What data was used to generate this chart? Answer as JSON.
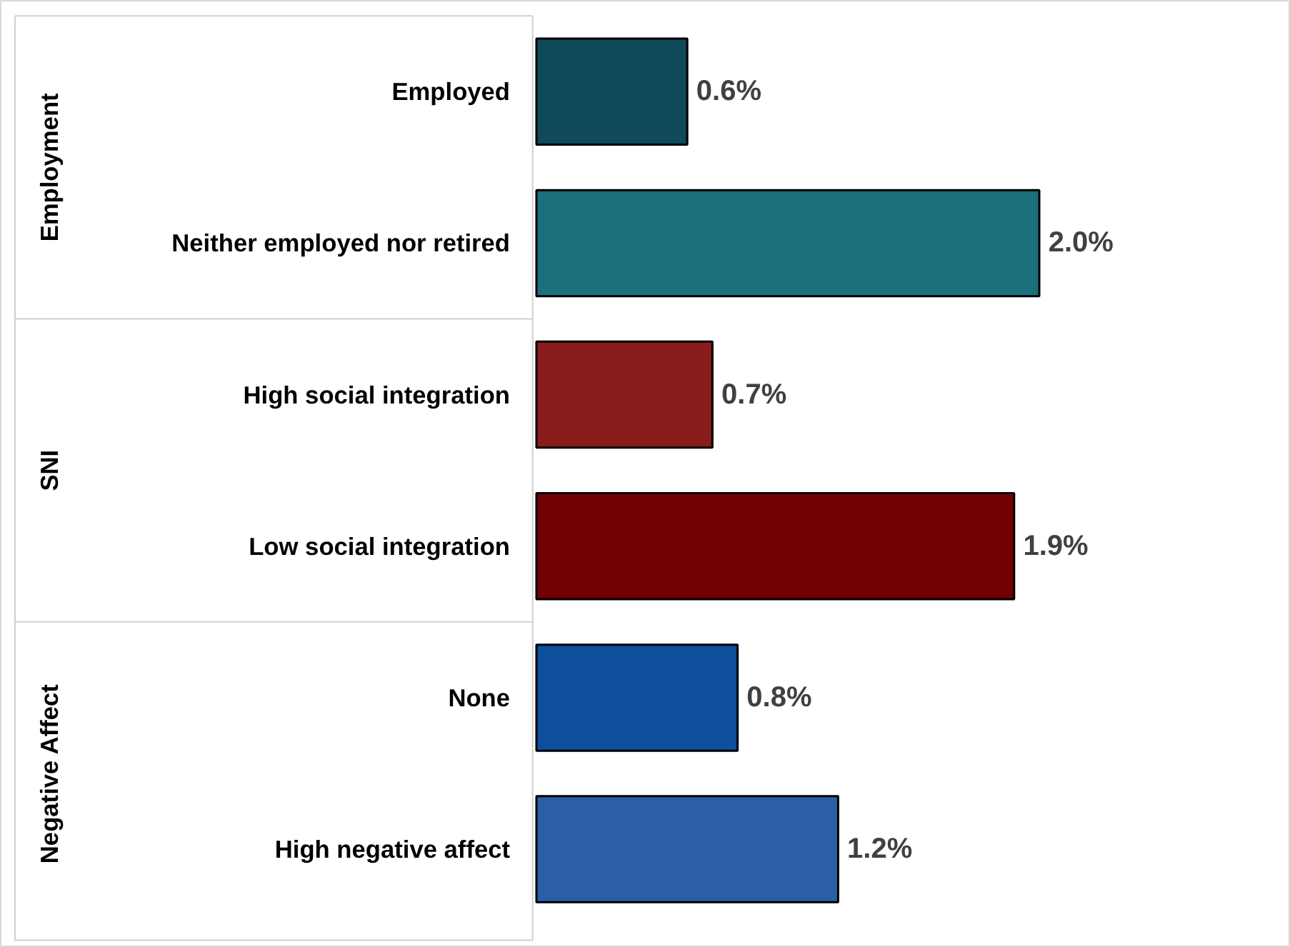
{
  "chart_data": {
    "type": "bar",
    "orientation": "horizontal",
    "categories": [
      "Employed",
      "Neither employed nor retired",
      "High social integration",
      "Low social integration",
      "None",
      "High negative affect"
    ],
    "values": [
      0.6,
      2.0,
      0.7,
      1.9,
      0.8,
      1.2
    ],
    "value_labels": [
      "0.6%",
      "2.0%",
      "0.7%",
      "1.9%",
      "0.8%",
      "1.2%"
    ],
    "colors": [
      "#0e4a5a",
      "#1c6f7c",
      "#8a1c1c",
      "#720000",
      "#0d4f9a",
      "#2a5fa8"
    ],
    "annotations": [
      "Employment",
      "SNI",
      "Negative Affect"
    ],
    "grid": false
  }
}
